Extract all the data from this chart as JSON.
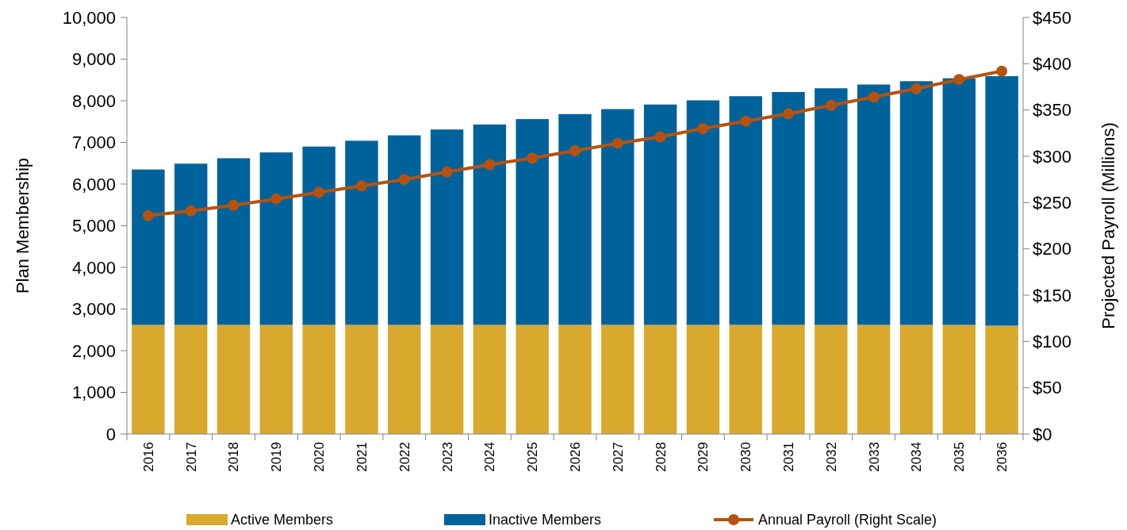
{
  "chart_data": {
    "type": "bar",
    "stacked": true,
    "ylabel": "Plan Membership",
    "y2label": "Projected Payroll (Millions)",
    "categories": [
      "2016",
      "2017",
      "2018",
      "2019",
      "2020",
      "2021",
      "2022",
      "2023",
      "2024",
      "2025",
      "2026",
      "2027",
      "2028",
      "2029",
      "2030",
      "2031",
      "2032",
      "2033",
      "2034",
      "2035",
      "2036"
    ],
    "series": [
      {
        "name": "Active Members",
        "color": "#d9a92e",
        "values": [
          2620,
          2620,
          2620,
          2620,
          2620,
          2620,
          2620,
          2620,
          2620,
          2620,
          2620,
          2620,
          2620,
          2620,
          2620,
          2620,
          2620,
          2620,
          2620,
          2620,
          2600
        ]
      },
      {
        "name": "Inactive Members",
        "color": "#00629b",
        "values": [
          3730,
          3870,
          4000,
          4140,
          4280,
          4420,
          4550,
          4690,
          4810,
          4940,
          5060,
          5180,
          5290,
          5390,
          5490,
          5590,
          5680,
          5770,
          5850,
          5920,
          5990
        ]
      },
      {
        "name": "Annual Payroll (Right Scale)",
        "type": "line",
        "axis": "y2",
        "color": "#b5520f",
        "marker": "circle",
        "values": [
          236,
          241,
          247,
          254,
          261,
          268,
          275,
          283,
          291,
          298,
          306,
          314,
          321,
          330,
          338,
          346,
          355,
          364,
          373,
          383,
          392
        ]
      }
    ],
    "ylim": [
      0,
      10000
    ],
    "yticks": [
      {
        "value": 0,
        "label": "0"
      },
      {
        "value": 1000,
        "label": "1,000"
      },
      {
        "value": 2000,
        "label": "2,000"
      },
      {
        "value": 3000,
        "label": "3,000"
      },
      {
        "value": 4000,
        "label": "4,000"
      },
      {
        "value": 5000,
        "label": "5,000"
      },
      {
        "value": 6000,
        "label": "6,000"
      },
      {
        "value": 7000,
        "label": "7,000"
      },
      {
        "value": 8000,
        "label": "8,000"
      },
      {
        "value": 9000,
        "label": "9,000"
      },
      {
        "value": 10000,
        "label": "10,000"
      }
    ],
    "y2lim": [
      0,
      450
    ],
    "y2ticks": [
      {
        "value": 0,
        "label": "$0"
      },
      {
        "value": 50,
        "label": "$50"
      },
      {
        "value": 100,
        "label": "$100"
      },
      {
        "value": 150,
        "label": "$150"
      },
      {
        "value": 200,
        "label": "$200"
      },
      {
        "value": 250,
        "label": "$250"
      },
      {
        "value": 300,
        "label": "$300"
      },
      {
        "value": 350,
        "label": "$350"
      },
      {
        "value": 400,
        "label": "$400"
      },
      {
        "value": 450,
        "label": "$450"
      }
    ],
    "grid": false,
    "legend": "bottom"
  }
}
